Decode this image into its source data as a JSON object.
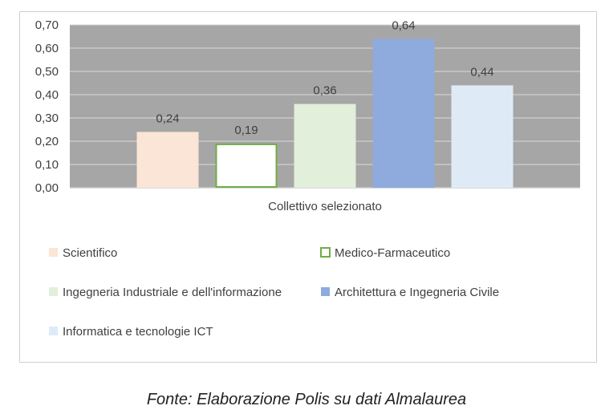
{
  "chart_data": {
    "type": "bar",
    "categories": [
      "Collettivo selezionato"
    ],
    "series": [
      {
        "name": "Scientifico",
        "values": [
          0.24
        ],
        "value_label": "0,24",
        "color": "#fbe5d6",
        "outline": "none"
      },
      {
        "name": "Medico-Farmaceutico",
        "values": [
          0.19
        ],
        "value_label": "0,19",
        "color": "#ffffff",
        "outline": "#70ad47"
      },
      {
        "name": "Ingegneria Industriale e dell'informazione",
        "values": [
          0.36
        ],
        "value_label": "0,36",
        "color": "#e2efda",
        "outline": "none"
      },
      {
        "name": "Architettura e Ingegneria Civile",
        "values": [
          0.64
        ],
        "value_label": "0,64",
        "color": "#8faadc",
        "outline": "none"
      },
      {
        "name": "Informatica e tecnologie ICT",
        "values": [
          0.44
        ],
        "value_label": "0,44",
        "color": "#deebf7",
        "outline": "none"
      }
    ],
    "xlabel": "Collettivo selezionato",
    "ylim": [
      0,
      0.7
    ],
    "yticks": [
      "0,00",
      "0,10",
      "0,20",
      "0,30",
      "0,40",
      "0,50",
      "0,60",
      "0,70"
    ],
    "ytick_values": [
      0,
      0.1,
      0.2,
      0.3,
      0.4,
      0.5,
      0.6,
      0.7
    ],
    "plot_background": "#a6a6a6",
    "gridline_color": "#d9d9d9",
    "grid": true,
    "legend_position": "bottom"
  },
  "caption": "Fonte: Elaborazione Polis su dati Almalaurea"
}
